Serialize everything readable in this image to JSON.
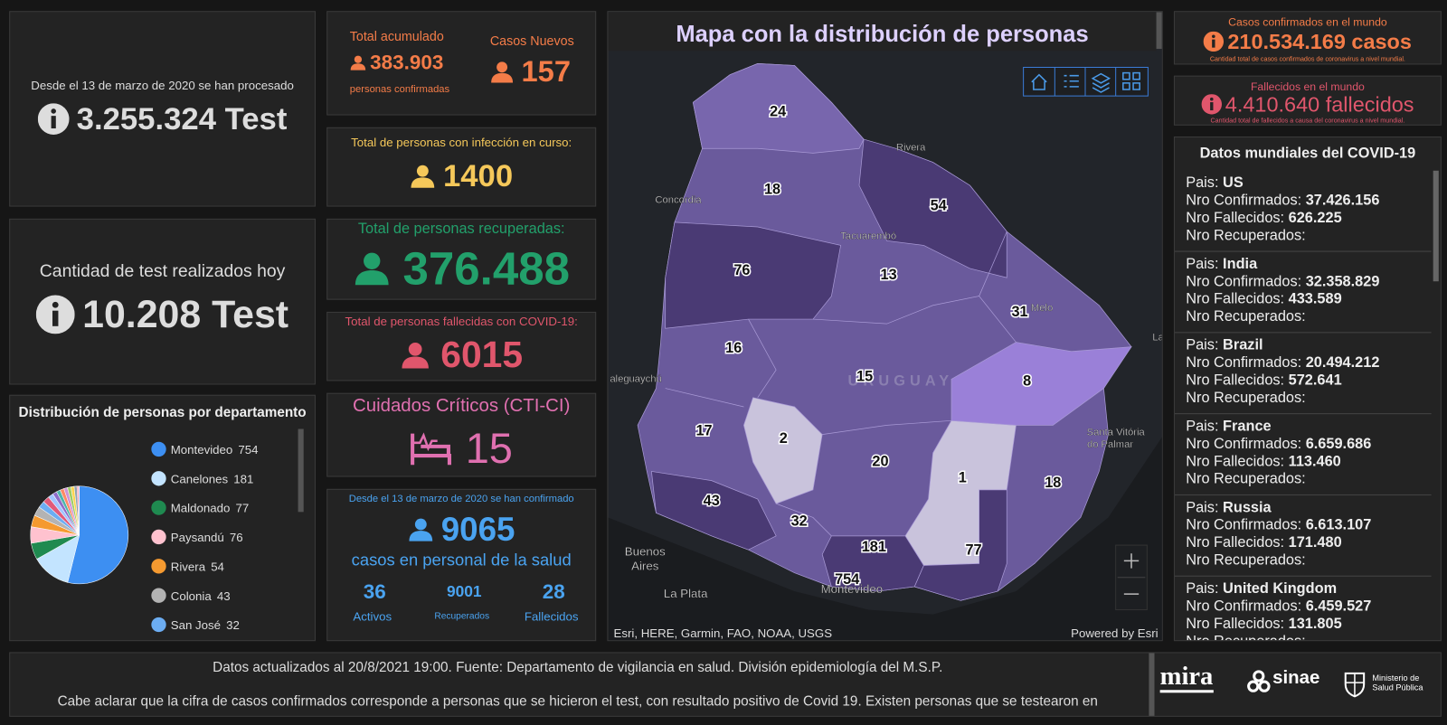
{
  "tests_total": {
    "caption": "Desde el 13 de marzo de 2020 se han procesado",
    "value": "3.255.324 Test"
  },
  "tests_today": {
    "caption": "Cantidad de test realizados hoy",
    "value": "10.208 Test"
  },
  "accumulated": {
    "label": "Total acumulado",
    "value": "383.903",
    "sub": "personas confirmadas"
  },
  "new_cases": {
    "label": "Casos Nuevos",
    "value": "157"
  },
  "active": {
    "label": "Total de personas con infección en curso:",
    "value": "1400"
  },
  "recovered": {
    "label": "Total de personas recuperadas:",
    "value": "376.488"
  },
  "deceased": {
    "label": "Total de personas fallecidas con COVID-19:",
    "value": "6015"
  },
  "critical": {
    "label": "Cuidados Críticos (CTI-CI)",
    "value": "15"
  },
  "health_staff": {
    "caption": "Desde el 13 de marzo de 2020 se han confirmado",
    "value": "9065",
    "label": "casos en personal de la salud",
    "stats": [
      {
        "value": "36",
        "label": "Activos"
      },
      {
        "value": "9001",
        "label": "Recuperados"
      },
      {
        "value": "28",
        "label": "Fallecidos"
      }
    ]
  },
  "departments": {
    "title": "Distribución de personas por departamento",
    "legend": [
      {
        "name": "Montevideo",
        "value": 754,
        "color": "#3d8ff2"
      },
      {
        "name": "Canelones",
        "value": 181,
        "color": "#c3e4ff"
      },
      {
        "name": "Maldonado",
        "value": 77,
        "color": "#1f8a50"
      },
      {
        "name": "Paysandú",
        "value": 76,
        "color": "#ffc2cf"
      },
      {
        "name": "Rivera",
        "value": 54,
        "color": "#f59a30"
      },
      {
        "name": "Colonia",
        "value": 43,
        "color": "#b3b3b3"
      },
      {
        "name": "San José",
        "value": 32,
        "color": "#6cadf2"
      }
    ],
    "slice_colors": [
      "#3d8ff2",
      "#c3e4ff",
      "#1f8a50",
      "#ffc2cf",
      "#f59a30",
      "#b3b3b3",
      "#6cadf2",
      "#e05a7a",
      "#a0c4ff",
      "#8e6cc9",
      "#4db6ac",
      "#ff8a65",
      "#ce93d8",
      "#9ccc65",
      "#ffd54f",
      "#90a4ae",
      "#f48fb1",
      "#64b5f6",
      "#81c784"
    ]
  },
  "map": {
    "title": "Mapa con la distribución de personas",
    "values": [
      754,
      181,
      77,
      76,
      54,
      43,
      32,
      31,
      24,
      20,
      18,
      18,
      17,
      16,
      15,
      13,
      8,
      2,
      1
    ],
    "places": [
      "Rivera",
      "Concordia",
      "Tacuarembó",
      "Melo",
      "URUGUAY",
      "aleguaychú",
      "Santa Vitória",
      "do Palmar",
      "Buenos",
      "Aires",
      "La Plata",
      "Montevideo",
      "La"
    ],
    "attribution": "Esri, HERE, Garmin, FAO, NOAA, USGS",
    "powered": "Powered by Esri"
  },
  "world_cases": {
    "label": "Casos confirmados en el mundo",
    "value": "210.534.169 casos",
    "note": "Cantidad total de casos confirmados de coronavirus a nivel mundial."
  },
  "world_deaths": {
    "label": "Fallecidos en el mundo",
    "value": "4.410.640 fallecidos",
    "note": "Cantidad total de fallecidos a causa del coronavirus a nivel mundial."
  },
  "world_data": {
    "title": "Datos mundiales del COVID-19",
    "field_labels": [
      "Pais:",
      "Nro Confirmados:",
      "Nro Fallecidos:",
      "Nro Recuperados:"
    ],
    "countries": [
      {
        "name": "US",
        "confirmed": "37.426.156",
        "deaths": "626.225"
      },
      {
        "name": "India",
        "confirmed": "32.358.829",
        "deaths": "433.589"
      },
      {
        "name": "Brazil",
        "confirmed": "20.494.212",
        "deaths": "572.641"
      },
      {
        "name": "France",
        "confirmed": "6.659.686",
        "deaths": "113.460"
      },
      {
        "name": "Russia",
        "confirmed": "6.613.107",
        "deaths": "171.480"
      },
      {
        "name": "United Kingdom",
        "confirmed": "6.459.527",
        "deaths": "131.805"
      }
    ]
  },
  "footer": {
    "lines": [
      "Datos actualizados al 20/8/2021 19:00. Fuente: Departamento de vigilancia en salud. División epidemiología del M.S.P.",
      "Cabe aclarar que la cifra de casos confirmados corresponde a personas que se hicieron el test, con resultado positivo de Covid 19. Existen personas que se testearon en"
    ],
    "logos": [
      "mira",
      "sinae",
      "Ministerio de Salud Pública"
    ]
  }
}
